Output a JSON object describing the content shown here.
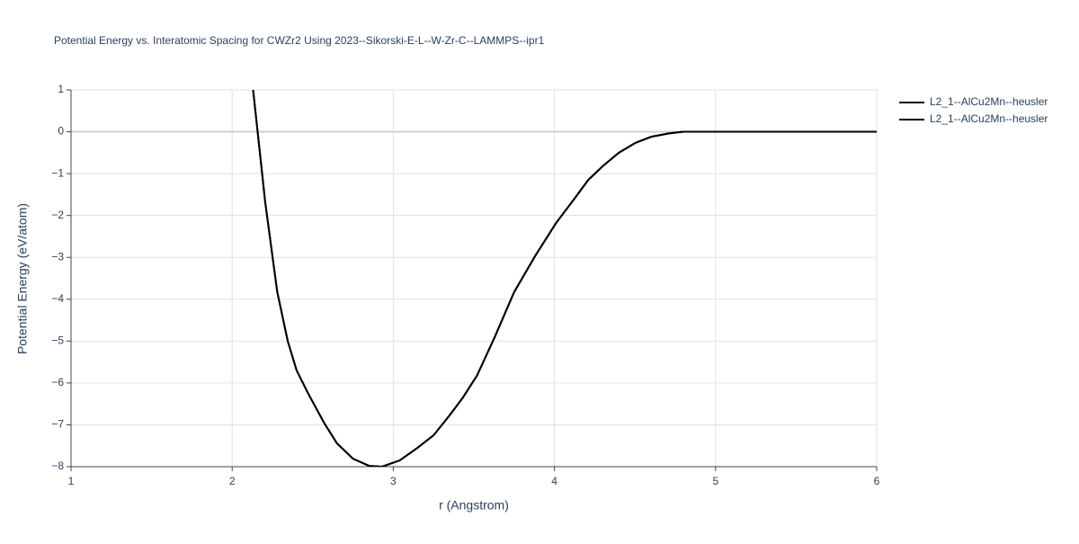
{
  "chart_data": {
    "type": "line",
    "title": "Potential Energy vs. Interatomic Spacing for CWZr2 Using 2023--Sikorski-E-L--W-Zr-C--LAMMPS--ipr1",
    "x_label": "r (Angstrom)",
    "y_label": "Potential Energy (eV/atom)",
    "x": [
      2.13,
      2.205,
      2.28,
      2.345,
      2.4,
      2.47,
      2.57,
      2.65,
      2.75,
      2.85,
      2.93,
      3.04,
      3.15,
      3.25,
      3.35,
      3.43,
      3.52,
      3.63,
      3.75,
      3.88,
      4.01,
      4.12,
      4.21,
      4.3,
      4.4,
      4.5,
      4.6,
      4.71,
      4.8,
      5.0,
      6.0
    ],
    "series": [
      {
        "name": "L2_1--AlCu2Mn--heusler",
        "color": "#000000",
        "values": [
          1,
          -1.68,
          -3.83,
          -5.0,
          -5.7,
          -6.24,
          -6.95,
          -7.44,
          -7.81,
          -7.98,
          -8.0,
          -7.85,
          -7.55,
          -7.25,
          -6.77,
          -6.36,
          -5.82,
          -4.9,
          -3.83,
          -2.97,
          -2.18,
          -1.62,
          -1.15,
          -0.82,
          -0.5,
          -0.27,
          -0.12,
          -0.04,
          0,
          0,
          0
        ]
      },
      {
        "name": "L2_1--AlCu2Mn--heusler",
        "color": "#000000",
        "values": [
          1,
          -1.68,
          -3.83,
          -5.0,
          -5.7,
          -6.24,
          -6.95,
          -7.44,
          -7.81,
          -7.98,
          -8.0,
          -7.85,
          -7.55,
          -7.25,
          -6.77,
          -6.36,
          -5.82,
          -4.9,
          -3.83,
          -2.97,
          -2.18,
          -1.62,
          -1.15,
          -0.82,
          -0.5,
          -0.27,
          -0.12,
          -0.04,
          0,
          0,
          0
        ]
      }
    ],
    "xlim": [
      1,
      6
    ],
    "ylim": [
      -8,
      1
    ],
    "xticks": [
      1,
      2,
      3,
      4,
      5,
      6
    ],
    "yticks": [
      1,
      0,
      {
        "value": -1,
        "label": "−1"
      },
      {
        "value": -2,
        "label": "−2"
      },
      {
        "value": -3,
        "label": "−3"
      },
      {
        "value": -4,
        "label": "−4"
      },
      {
        "value": -5,
        "label": "−5"
      },
      {
        "value": -6,
        "label": "−6"
      },
      {
        "value": -7,
        "label": "−7"
      },
      {
        "value": -8,
        "label": "−8"
      }
    ],
    "grid": true
  }
}
